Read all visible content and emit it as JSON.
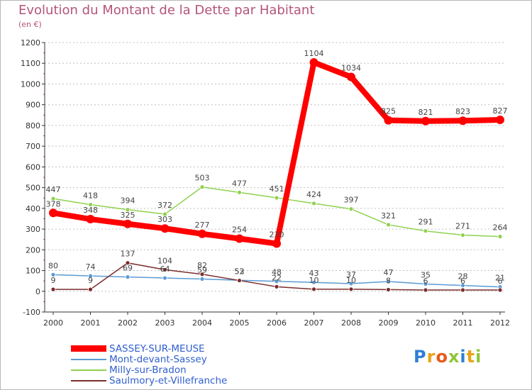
{
  "header": {
    "title": "Evolution du Montant de la Dette par Habitant",
    "subtitle": "(en €)"
  },
  "logo": {
    "text": "Proxiti"
  },
  "colors": {
    "title": "#b5547b",
    "axis": "#333333",
    "grid": "#c0c0c0",
    "legend_text": "#2f5fcf",
    "logo_letters": [
      "#2e7fd6",
      "#e8a317",
      "#e85a1a",
      "#8fc43a",
      "#2e7fd6",
      "#e8a317",
      "#8fc43a"
    ]
  },
  "chart_data": {
    "type": "line",
    "title": "Evolution du Montant de la Dette par Habitant",
    "subtitle": "(en €)",
    "xlabel": "",
    "ylabel": "",
    "x": [
      "2000",
      "2001",
      "2002",
      "2003",
      "2004",
      "2005",
      "2006",
      "2007",
      "2008",
      "2009",
      "2010",
      "2011",
      "2012"
    ],
    "ylim": [
      -100,
      1200
    ],
    "yticks": [
      -100,
      0,
      100,
      200,
      300,
      400,
      500,
      600,
      700,
      800,
      900,
      1000,
      1100,
      1200
    ],
    "grid": "horizontal dashed",
    "legend_position": "bottom-left",
    "series": [
      {
        "name": "SASSEY-SUR-MEUSE",
        "color": "#ff0000",
        "values": [
          378,
          348,
          325,
          303,
          277,
          254,
          230,
          1104,
          1034,
          825,
          821,
          823,
          827
        ],
        "labels": [
          "378",
          "348",
          "325",
          "303",
          "277",
          "254",
          "230",
          "1104",
          "1034",
          "825",
          "821",
          "823",
          "827"
        ]
      },
      {
        "name": "Mont-devant-Sassey",
        "color": "#5b9bd5",
        "values": [
          80,
          74,
          69,
          64,
          59,
          53,
          48,
          43,
          37,
          47,
          35,
          28,
          21
        ],
        "labels": [
          "80",
          "74",
          "69",
          "64",
          "59",
          "53",
          "48",
          "43",
          "37",
          "47",
          "35",
          "28",
          "21"
        ]
      },
      {
        "name": "Milly-sur-Bradon",
        "color": "#8fd14f",
        "values": [
          447,
          418,
          394,
          372,
          503,
          477,
          451,
          424,
          397,
          321,
          291,
          271,
          264
        ],
        "labels": [
          "447",
          "418",
          "394",
          "372",
          "503",
          "477",
          "451",
          "424",
          "397",
          "321",
          "291",
          "271",
          "264"
        ]
      },
      {
        "name": "Saulmory-et-Villefranche",
        "color": "#7b2c2c",
        "values": [
          9,
          9,
          137,
          104,
          82,
          52,
          22,
          10,
          10,
          8,
          6,
          6,
          6
        ],
        "labels": [
          "9",
          "9",
          "137",
          "104",
          "82",
          "52",
          "22",
          "10",
          "10",
          "8",
          "6",
          "6",
          "6"
        ]
      }
    ]
  }
}
